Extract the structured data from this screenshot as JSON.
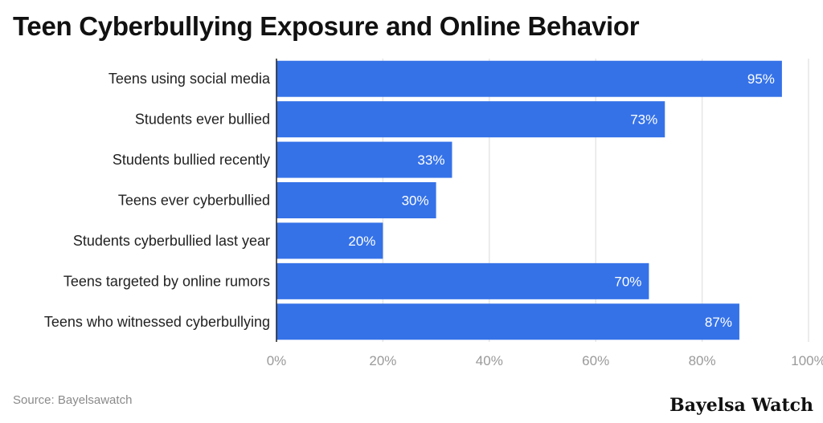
{
  "title": "Teen Cyberbullying Exposure and Online Behavior",
  "source": "Source: Bayelsawatch",
  "brand": "Bayelsa Watch",
  "colors": {
    "bar": "#3572E8",
    "grid": "#e6e6e6",
    "axis": "#222222",
    "tick": "#9a9a9a",
    "label": "#222222",
    "value": "#ffffff"
  },
  "chart_data": {
    "type": "bar",
    "orientation": "horizontal",
    "categories": [
      "Teens using social media",
      "Students ever bullied",
      "Students bullied recently",
      "Teens ever cyberbullied",
      "Students cyberbullied last year",
      "Teens targeted by online rumors",
      "Teens who witnessed cyberbullying"
    ],
    "values": [
      95,
      73,
      33,
      30,
      20,
      70,
      87
    ],
    "value_labels": [
      "95%",
      "73%",
      "33%",
      "30%",
      "20%",
      "70%",
      "87%"
    ],
    "xlim": [
      0,
      100
    ],
    "xticks": [
      0,
      20,
      40,
      60,
      80,
      100
    ],
    "xtick_labels": [
      "0%",
      "20%",
      "40%",
      "60%",
      "80%",
      "100%"
    ],
    "grid": true,
    "legend": "none"
  }
}
